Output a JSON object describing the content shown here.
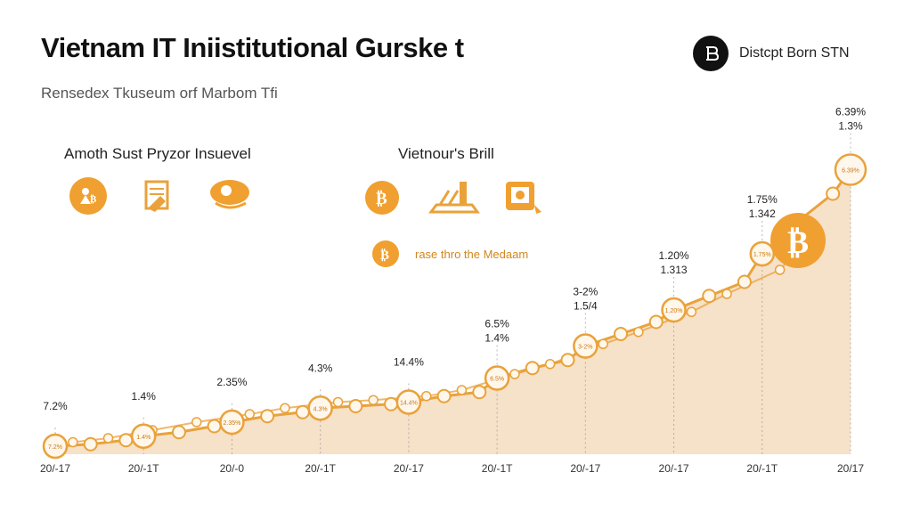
{
  "header": {
    "title": "Vietnam IT Iniistitutional Gurske t",
    "subtitle": "Rensedex Tkuseum orf Marbom Tfi",
    "brand_text": "Distcpt Born STN"
  },
  "groups": {
    "left_label": "Amoth Sust Pryzor Insuevel",
    "right_label": "Vietnour's Brill",
    "legend_note": "rase thro the Medaam",
    "left_icons": [
      "bitcoin-man-icon",
      "document-hand-icon",
      "wallet-coin-icon"
    ],
    "right_icons": [
      "bitcoin-icon",
      "building-icon",
      "mobile-wallet-icon"
    ]
  },
  "colors": {
    "accent": "#f0a030",
    "line": "#e9a23b",
    "area": "#f5dcc0",
    "marker_fill": "#fff7ec"
  },
  "chart_data": {
    "type": "line",
    "title": "Vietnam IT Iniistitutional Gurske t",
    "xlabel": "",
    "ylabel": "",
    "ylim": [
      0,
      8
    ],
    "x_tick_labels": [
      "20/-17",
      "20/-1T",
      "20/-0",
      "20/-1T",
      "20/-17",
      "20/-1T",
      "20/-17",
      "20/-17",
      "20/-1T",
      "20/17"
    ],
    "series": [
      {
        "name": "main",
        "x": [
          0,
          0.4,
          0.8,
          1,
          1.4,
          1.8,
          2,
          2.4,
          2.8,
          3,
          3.4,
          3.8,
          4,
          4.4,
          4.8,
          5,
          5.4,
          5.8,
          6,
          6.4,
          6.8,
          7,
          7.4,
          7.8,
          8,
          8.4,
          8.8,
          9
        ],
        "values": [
          0.2,
          0.25,
          0.35,
          0.45,
          0.55,
          0.7,
          0.8,
          0.95,
          1.05,
          1.15,
          1.2,
          1.25,
          1.3,
          1.45,
          1.55,
          1.9,
          2.15,
          2.35,
          2.7,
          3.0,
          3.3,
          3.6,
          3.95,
          4.3,
          5.0,
          5.8,
          6.5,
          7.1
        ],
        "markers": [
          {
            "x": 0,
            "text": "7.2%",
            "label2": ""
          },
          {
            "x": 1,
            "text": "1.4%",
            "label2": ""
          },
          {
            "x": 2,
            "text": "2.35%",
            "label2": ""
          },
          {
            "x": 3,
            "text": "4.3%",
            "label2": ""
          },
          {
            "x": 4,
            "text": "14.4%",
            "label2": ""
          },
          {
            "x": 5,
            "text": "6.5%",
            "label2": "1.4%"
          },
          {
            "x": 6,
            "text": "3-2%",
            "label2": "1.5/4"
          },
          {
            "x": 7,
            "text": "1.20%",
            "label2": "1.313"
          },
          {
            "x": 8,
            "text": "1.75%",
            "label2": "1.342"
          },
          {
            "x": 9,
            "text": "6.39%",
            "label2": "1.3%"
          }
        ]
      },
      {
        "name": "secondary",
        "x": [
          0.2,
          0.6,
          1.1,
          1.6,
          2.2,
          2.6,
          3.2,
          3.6,
          4.2,
          4.6,
          5.2,
          5.6,
          6.2,
          6.6,
          7.2,
          7.6,
          8.2,
          8.6
        ],
        "values": [
          0.3,
          0.4,
          0.6,
          0.8,
          1.0,
          1.15,
          1.3,
          1.35,
          1.45,
          1.6,
          2.0,
          2.25,
          2.75,
          3.05,
          3.55,
          4.0,
          4.6,
          5.6
        ]
      }
    ]
  }
}
